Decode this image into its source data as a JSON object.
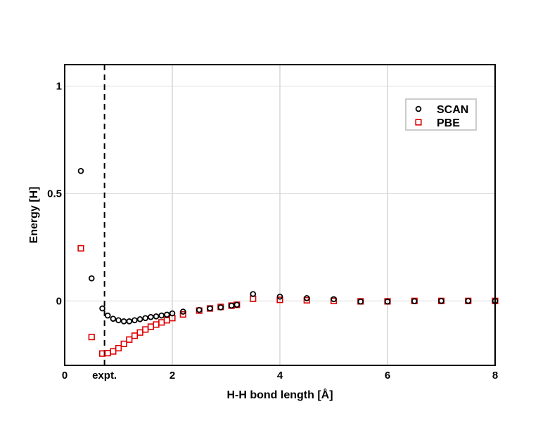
{
  "chart_data": {
    "type": "scatter",
    "title": "",
    "xlabel": "H-H bond length [Å]",
    "ylabel": "Energy [H]",
    "xlim": [
      0,
      8
    ],
    "ylim": [
      -0.3,
      1.1
    ],
    "xticks": [
      {
        "value": 0,
        "label": "0"
      },
      {
        "value": 2,
        "label": "2"
      },
      {
        "value": 4,
        "label": "4"
      },
      {
        "value": 6,
        "label": "6"
      },
      {
        "value": 8,
        "label": "8"
      }
    ],
    "yticks": [
      {
        "value": 0,
        "label": "0"
      },
      {
        "value": 0.5,
        "label": "0.5"
      },
      {
        "value": 1,
        "label": "1"
      }
    ],
    "grid": true,
    "legend_position": "top-right",
    "annotations": [
      {
        "type": "vertical-dashed-line",
        "x": 0.74,
        "label": "expt."
      }
    ],
    "series": [
      {
        "name": "SCAN",
        "marker": "circle",
        "color": "#000000",
        "x": [
          0.3,
          0.5,
          0.7,
          0.8,
          0.9,
          1.0,
          1.1,
          1.2,
          1.3,
          1.4,
          1.5,
          1.6,
          1.7,
          1.8,
          1.9,
          2.0,
          2.2,
          2.5,
          2.7,
          2.9,
          3.1,
          3.2,
          3.5,
          4.0,
          4.5,
          5.0,
          5.5,
          6.0,
          6.5,
          7.0,
          7.5,
          8.0
        ],
        "y": [
          0.605,
          0.105,
          -0.035,
          -0.068,
          -0.083,
          -0.09,
          -0.095,
          -0.095,
          -0.09,
          -0.085,
          -0.08,
          -0.075,
          -0.072,
          -0.068,
          -0.064,
          -0.058,
          -0.05,
          -0.042,
          -0.035,
          -0.03,
          -0.022,
          -0.018,
          0.032,
          0.02,
          0.013,
          0.008,
          -0.003,
          -0.003,
          -0.001,
          0.0,
          0.0,
          0.0
        ]
      },
      {
        "name": "PBE",
        "marker": "square",
        "color": "#dd0000",
        "x": [
          0.3,
          0.5,
          0.7,
          0.8,
          0.9,
          1.0,
          1.1,
          1.2,
          1.3,
          1.4,
          1.5,
          1.6,
          1.7,
          1.8,
          1.9,
          2.0,
          2.2,
          2.5,
          2.7,
          2.9,
          3.1,
          3.2,
          3.5,
          4.0,
          4.5,
          5.0,
          5.5,
          6.0,
          6.5,
          7.0,
          7.5,
          8.0
        ],
        "y": [
          0.245,
          -0.168,
          -0.245,
          -0.243,
          -0.235,
          -0.22,
          -0.2,
          -0.18,
          -0.162,
          -0.147,
          -0.133,
          -0.12,
          -0.11,
          -0.1,
          -0.09,
          -0.08,
          -0.063,
          -0.045,
          -0.035,
          -0.028,
          -0.022,
          -0.018,
          0.01,
          0.005,
          0.003,
          0.0,
          -0.002,
          -0.002,
          0.0,
          0.0,
          0.0,
          0.0
        ]
      }
    ]
  }
}
